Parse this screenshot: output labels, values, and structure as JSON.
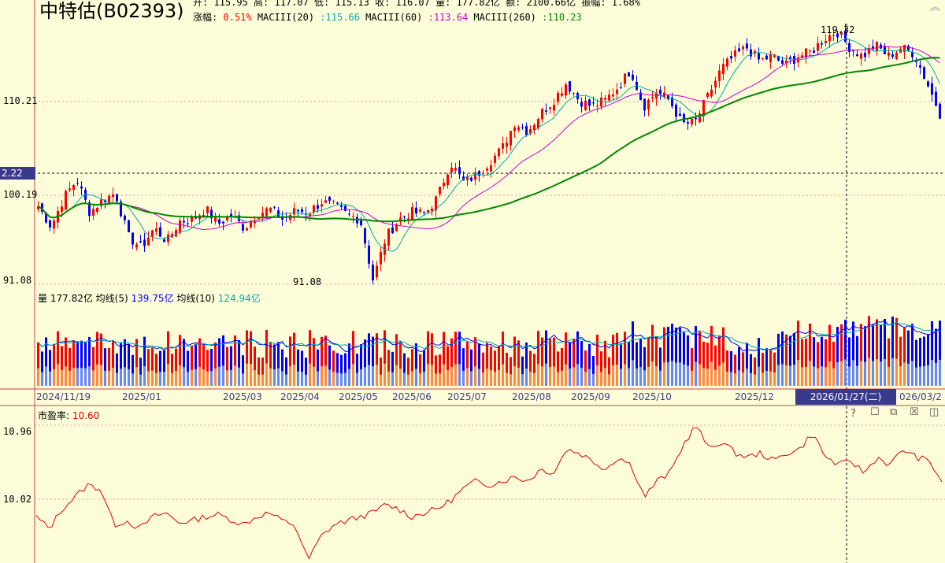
{
  "title": "中特估(B02393)",
  "header_line1": "开: 115.95 高: 117.07 低: 115.13 收: 116.07 量: 177.82亿 额: 2100.66亿 振幅: 1.68%",
  "header_line2": {
    "change_label": "涨幅:",
    "change_value": "0.51%",
    "ma20_label": "MACIII(20)",
    "ma20_value": ":115.66",
    "ma60_label": "MACIII(60)",
    "ma60_value": ":113.64",
    "ma260_label": "MACIII(260)",
    "ma260_value": ":110.23"
  },
  "price_axis": {
    "labels": [
      "110.21",
      "100.19",
      "91.08"
    ],
    "current_box": "2.22"
  },
  "annotations": {
    "high": "119.32",
    "low": "91.08"
  },
  "volume": {
    "label": "量",
    "value": "177.82亿",
    "ma5_label": "均线(5)",
    "ma5_value": "139.75亿",
    "ma10_label": "均线(10)",
    "ma10_value": "124.94亿"
  },
  "x_axis": {
    "ticks": [
      "2024/11/19",
      "2025/01",
      "2025/03",
      "2025/04",
      "2025/05",
      "2025/06",
      "2025/07",
      "2025/08",
      "2025/09",
      "2025/10",
      "2025/12",
      "026/03/2"
    ],
    "selected_date": "2026/01/27(二)"
  },
  "pe": {
    "label": "市盈率:",
    "value": "10.60",
    "axis": [
      "10.96",
      "10.02"
    ]
  },
  "colors": {
    "up": "#ff0000",
    "down": "#0000ff",
    "ma20": "#00aaaa",
    "ma60": "#cc00cc",
    "ma260": "#008800",
    "volume_ma5": "#0000ff",
    "volume_ma10": "#00aaaa",
    "pe_line": "#dd0000"
  },
  "chart_data": [
    {
      "type": "candlestick",
      "title": "中特估(B02393)",
      "ylim": [
        91.08,
        119.32
      ],
      "ticks": [
        110.21,
        100.19,
        91.08
      ],
      "annotations": [
        {
          "label": "119.32",
          "kind": "high"
        },
        {
          "label": "91.08",
          "kind": "low"
        }
      ],
      "close_path": [
        99.5,
        97.2,
        100.5,
        102.5,
        98.8,
        100.2,
        101.0,
        96.0,
        94.8,
        97.0,
        95.5,
        97.8,
        98.0,
        99.2,
        97.5,
        98.5,
        97.0,
        98.6,
        99.2,
        98.0,
        99.0,
        98.8,
        100.0,
        99.5,
        98.5,
        98.0,
        91.08,
        96.0,
        98.0,
        98.8,
        98.6,
        100.5,
        104.5,
        102.2,
        103.0,
        104.5,
        106.0,
        109.0,
        108.0,
        110.0,
        111.5,
        113.5,
        111.5,
        110.8,
        111.5,
        113.0,
        115.0,
        110.8,
        112.5,
        111.5,
        108.8,
        109.0,
        112.0,
        115.0,
        116.5,
        117.5,
        116.0,
        116.5,
        115.5,
        116.5,
        117.0,
        118.5,
        119.32,
        117.5,
        116.5,
        117.8,
        116.5,
        117.5,
        116.8,
        113.5,
        110.0
      ],
      "series": [
        {
          "name": "MACIII(20)",
          "last": 115.66
        },
        {
          "name": "MACIII(60)",
          "last": 113.64
        },
        {
          "name": "MACIII(260)",
          "last": 110.23
        }
      ]
    },
    {
      "type": "bar",
      "title": "量",
      "series": [
        {
          "name": "量",
          "last": "177.82亿"
        },
        {
          "name": "均线(5)",
          "last": "139.75亿"
        },
        {
          "name": "均线(10)",
          "last": "124.94亿"
        }
      ]
    },
    {
      "type": "line",
      "title": "市盈率",
      "ticks": [
        10.96,
        10.02
      ],
      "series": [
        {
          "name": "市盈率",
          "last": 10.6,
          "path": [
            9.85,
            9.7,
            9.95,
            10.1,
            10.25,
            10.2,
            9.75,
            9.8,
            9.7,
            9.85,
            9.9,
            9.78,
            9.8,
            9.85,
            9.88,
            9.82,
            9.75,
            9.85,
            9.9,
            9.8,
            9.75,
            9.3,
            9.6,
            9.75,
            9.8,
            9.85,
            9.9,
            10.0,
            9.95,
            9.85,
            9.9,
            9.95,
            10.05,
            10.2,
            10.3,
            10.25,
            10.3,
            10.35,
            10.3,
            10.45,
            10.4,
            10.7,
            10.65,
            10.55,
            10.45,
            10.6,
            10.5,
            10.1,
            10.3,
            10.4,
            10.75,
            11.0,
            10.7,
            10.8,
            10.65,
            10.6,
            10.65,
            10.55,
            10.65,
            10.7,
            10.9,
            10.6,
            10.5,
            10.55,
            10.4,
            10.6,
            10.5,
            10.7,
            10.6,
            10.55,
            10.3
          ]
        }
      ]
    }
  ]
}
